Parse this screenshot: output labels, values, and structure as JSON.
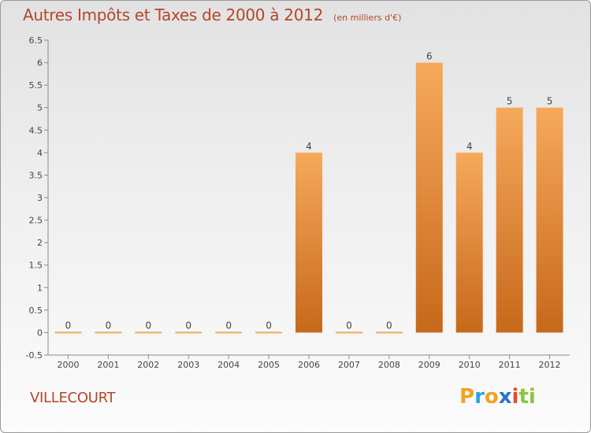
{
  "header": {
    "title": "Autres Impôts et Taxes de 2000 à 2012",
    "subtitle": "(en milliers d'€)"
  },
  "commune": "VILLECOURT",
  "logo": {
    "text": "Proxiti",
    "letters": [
      "P",
      "r",
      "o",
      "x",
      "i",
      "t",
      "i"
    ],
    "colors": [
      "#f2a31e",
      "#2aa5e0",
      "#f2a31e",
      "#2e74c8",
      "#e64b2a",
      "#8cc43f",
      "#8cc43f"
    ]
  },
  "chart_data": {
    "type": "bar",
    "title": "Autres Impôts et Taxes de 2000 à 2012",
    "subtitle": "(en milliers d'€)",
    "xlabel": "",
    "ylabel": "",
    "categories": [
      "2000",
      "2001",
      "2002",
      "2003",
      "2004",
      "2005",
      "2006",
      "2007",
      "2008",
      "2009",
      "2010",
      "2011",
      "2012"
    ],
    "values": [
      0,
      0,
      0,
      0,
      0,
      0,
      4,
      0,
      0,
      6,
      4,
      5,
      5
    ],
    "data_labels": [
      "0",
      "0",
      "0",
      "0",
      "0",
      "0",
      "4",
      "0",
      "0",
      "6",
      "4",
      "5",
      "5"
    ],
    "ylim": [
      -0.5,
      6.5
    ],
    "yticks": [
      -0.5,
      0,
      0.5,
      1,
      1.5,
      2,
      2.5,
      3,
      3.5,
      4,
      4.5,
      5,
      5.5,
      6,
      6.5
    ],
    "ytick_labels": [
      "-0.5",
      "0",
      "0.5",
      "1",
      "1.5",
      "2",
      "2.5",
      "3",
      "3.5",
      "4",
      "4.5",
      "5",
      "5.5",
      "6",
      "6.5"
    ],
    "bar_color_top": "#f6a95b",
    "bar_color_bottom": "#c7681a",
    "grid": false,
    "legend": "none"
  }
}
